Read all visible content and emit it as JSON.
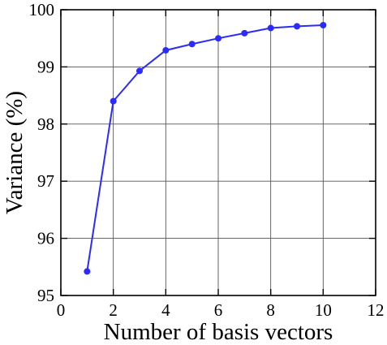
{
  "chart_data": {
    "type": "line",
    "title": "",
    "xlabel": "Number of basis vectors",
    "ylabel": "Variance (%)",
    "xlim": [
      0,
      12
    ],
    "ylim": [
      95,
      100
    ],
    "xticks": [
      "0",
      "2",
      "4",
      "6",
      "8",
      "10",
      "12"
    ],
    "yticks": [
      "95",
      "96",
      "97",
      "98",
      "99",
      "100"
    ],
    "grid": true,
    "legend": "none",
    "series": [
      {
        "x": [
          1,
          2,
          3,
          4,
          5,
          6,
          7,
          8,
          9,
          10
        ],
        "y": [
          95.42,
          98.4,
          98.93,
          99.29,
          99.4,
          99.5,
          99.59,
          99.68,
          99.71,
          99.73
        ],
        "color": "#2b2bff"
      }
    ]
  }
}
